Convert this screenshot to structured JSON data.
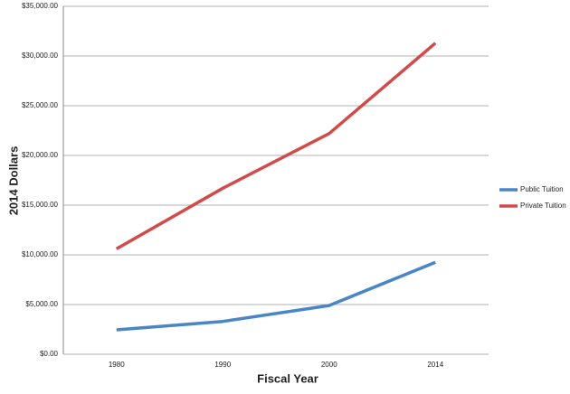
{
  "chart_data": {
    "type": "line",
    "x_label": "Fiscal Year",
    "y_label": "2014 Dollars",
    "categories": [
      "1980",
      "1990",
      "2000",
      "2014"
    ],
    "series": [
      {
        "name": "Public Tuition",
        "color": "#4a86c5",
        "values": [
          2450,
          3300,
          4900,
          9250
        ]
      },
      {
        "name": "Private Tuition",
        "color": "#d24b4b",
        "values": [
          10600,
          16700,
          22200,
          31300
        ]
      }
    ],
    "ylim": [
      0,
      35000
    ],
    "yticks": [
      {
        "value": 0,
        "label": "$0.00"
      },
      {
        "value": 5000,
        "label": "$5,000.00"
      },
      {
        "value": 10000,
        "label": "$10,000.00"
      },
      {
        "value": 15000,
        "label": "$15,000.00"
      },
      {
        "value": 20000,
        "label": "$20,000.00"
      },
      {
        "value": 25000,
        "label": "$25,000.00"
      },
      {
        "value": 30000,
        "label": "$30,000.00"
      },
      {
        "value": 35000,
        "label": "$35,000.00"
      }
    ],
    "grid": true,
    "legend": "right"
  }
}
